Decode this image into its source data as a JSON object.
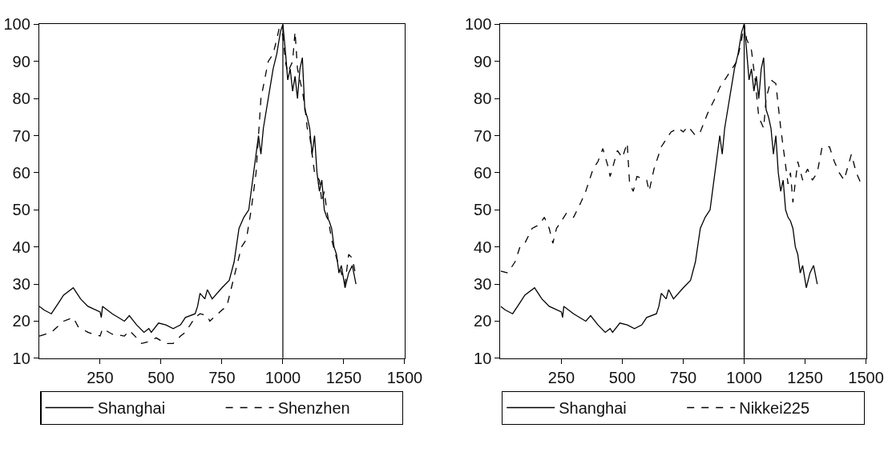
{
  "chart_data": [
    {
      "type": "line",
      "xlim": [
        0,
        1500
      ],
      "xticks": [
        250,
        500,
        750,
        1000,
        1250,
        1500
      ],
      "ylim": [
        10,
        100
      ],
      "yticks": [
        10,
        20,
        30,
        40,
        50,
        60,
        70,
        80,
        90,
        100
      ],
      "legend": "bottom",
      "ref_lines": [
        {
          "axis": "x",
          "value": 1000,
          "color": "#000000"
        }
      ],
      "series": [
        {
          "name": "Shanghai",
          "color": "#000000",
          "line_style": "solid",
          "x": [
            1,
            20,
            50,
            80,
            100,
            140,
            150,
            170,
            200,
            250,
            255,
            260,
            300,
            350,
            370,
            400,
            430,
            450,
            460,
            490,
            520,
            550,
            580,
            600,
            640,
            650,
            660,
            680,
            690,
            710,
            750,
            780,
            800,
            820,
            840,
            860,
            880,
            900,
            910,
            920,
            940,
            960,
            975,
            990,
            1000,
            1010,
            1020,
            1030,
            1040,
            1050,
            1060,
            1070,
            1080,
            1090,
            1100,
            1110,
            1120,
            1130,
            1140,
            1150,
            1160,
            1170,
            1180,
            1190,
            1200,
            1210,
            1220,
            1230,
            1240,
            1255,
            1270,
            1285,
            1300
          ],
          "values": [
            24,
            23,
            22,
            25,
            27,
            29,
            28,
            26,
            24,
            22.5,
            21,
            24,
            22,
            20,
            21.5,
            19,
            17,
            18,
            17,
            19.5,
            19,
            18,
            19,
            21,
            22,
            24,
            27.5,
            26,
            28.5,
            26,
            29,
            31,
            36,
            45,
            48,
            50,
            60,
            70,
            65,
            72,
            80,
            88,
            92,
            98,
            100,
            93,
            85,
            88,
            82,
            86,
            80,
            88,
            91,
            77,
            75,
            72,
            65,
            70,
            60,
            55,
            58,
            50,
            48,
            47,
            45,
            40,
            38,
            33,
            35,
            29,
            33,
            35,
            30
          ]
        },
        {
          "name": "Shenzhen",
          "color": "#000000",
          "line_style": "dashed",
          "x": [
            1,
            50,
            100,
            140,
            160,
            200,
            250,
            260,
            300,
            350,
            370,
            400,
            420,
            450,
            480,
            520,
            550,
            580,
            600,
            640,
            660,
            690,
            700,
            750,
            770,
            800,
            830,
            850,
            870,
            890,
            900,
            910,
            940,
            960,
            975,
            985,
            1000,
            1010,
            1020,
            1040,
            1050,
            1060,
            1080,
            1090,
            1100,
            1110,
            1130,
            1150,
            1160,
            1170,
            1180,
            1200,
            1220,
            1240,
            1255,
            1270,
            1285,
            1300
          ],
          "values": [
            16,
            17,
            20,
            21,
            18.5,
            17,
            16,
            18,
            16.5,
            16,
            17.5,
            15.5,
            14,
            14.5,
            15.5,
            14,
            14,
            16,
            17,
            21,
            22,
            21.5,
            20,
            23,
            24,
            32,
            40,
            42,
            50,
            60,
            70,
            80,
            90,
            92,
            96,
            99,
            97,
            90,
            87,
            90,
            98,
            88,
            82,
            78,
            72,
            70,
            60,
            58,
            52,
            55,
            50,
            42,
            37,
            33,
            30,
            38,
            37,
            32
          ]
        }
      ]
    },
    {
      "type": "line",
      "xlim": [
        0,
        1500
      ],
      "xticks": [
        250,
        500,
        750,
        1000,
        1250,
        1500
      ],
      "ylim": [
        10,
        100
      ],
      "yticks": [
        10,
        20,
        30,
        40,
        50,
        60,
        70,
        80,
        90,
        100
      ],
      "legend": "bottom",
      "ref_lines": [
        {
          "axis": "x",
          "value": 1000,
          "color": "#000000"
        }
      ],
      "series": [
        {
          "name": "Shanghai",
          "color": "#000000",
          "line_style": "solid",
          "x": [
            1,
            20,
            50,
            80,
            100,
            140,
            150,
            170,
            200,
            250,
            255,
            260,
            300,
            350,
            370,
            400,
            430,
            450,
            460,
            490,
            520,
            550,
            580,
            600,
            640,
            650,
            660,
            680,
            690,
            710,
            750,
            780,
            800,
            820,
            840,
            860,
            880,
            900,
            910,
            920,
            940,
            960,
            975,
            990,
            1000,
            1010,
            1020,
            1030,
            1040,
            1050,
            1060,
            1070,
            1080,
            1090,
            1100,
            1110,
            1120,
            1130,
            1140,
            1150,
            1160,
            1170,
            1180,
            1190,
            1200,
            1210,
            1220,
            1230,
            1240,
            1255,
            1270,
            1285,
            1300
          ],
          "values": [
            24,
            23,
            22,
            25,
            27,
            29,
            28,
            26,
            24,
            22.5,
            21,
            24,
            22,
            20,
            21.5,
            19,
            17,
            18,
            17,
            19.5,
            19,
            18,
            19,
            21,
            22,
            24,
            27.5,
            26,
            28.5,
            26,
            29,
            31,
            36,
            45,
            48,
            50,
            60,
            70,
            65,
            72,
            80,
            88,
            92,
            98,
            100,
            93,
            85,
            88,
            82,
            86,
            80,
            88,
            91,
            77,
            75,
            72,
            65,
            70,
            60,
            55,
            58,
            50,
            48,
            47,
            45,
            40,
            38,
            33,
            35,
            29,
            33,
            35,
            30
          ]
        },
        {
          "name": "Nikkei225",
          "color": "#000000",
          "line_style": "dashed",
          "x": [
            1,
            30,
            60,
            80,
            100,
            130,
            160,
            180,
            200,
            215,
            230,
            270,
            300,
            330,
            350,
            380,
            400,
            420,
            440,
            450,
            480,
            500,
            520,
            530,
            545,
            560,
            600,
            610,
            630,
            660,
            700,
            730,
            750,
            770,
            800,
            820,
            850,
            880,
            900,
            930,
            950,
            970,
            990,
            1000,
            1010,
            1030,
            1045,
            1060,
            1080,
            1090,
            1110,
            1130,
            1150,
            1170,
            1180,
            1190,
            1200,
            1220,
            1240,
            1260,
            1280,
            1300,
            1320,
            1350,
            1370,
            1390,
            1410,
            1440,
            1460,
            1480,
            1500
          ],
          "values": [
            33.5,
            33,
            36,
            40,
            41,
            45,
            46,
            48,
            45,
            41,
            45,
            49,
            48,
            52,
            55,
            61,
            63,
            66.5,
            62,
            59,
            66,
            64,
            68,
            57,
            55,
            59,
            58,
            55,
            61,
            67,
            71,
            72,
            71,
            72.5,
            70,
            71,
            76,
            80,
            83,
            86,
            88,
            90,
            96,
            100,
            96,
            93,
            85,
            75,
            72,
            80,
            85,
            84,
            72,
            62,
            57,
            60,
            52,
            63,
            58,
            61,
            58,
            60,
            67,
            67,
            63,
            60,
            58,
            65,
            60,
            57,
            57
          ]
        }
      ]
    }
  ]
}
